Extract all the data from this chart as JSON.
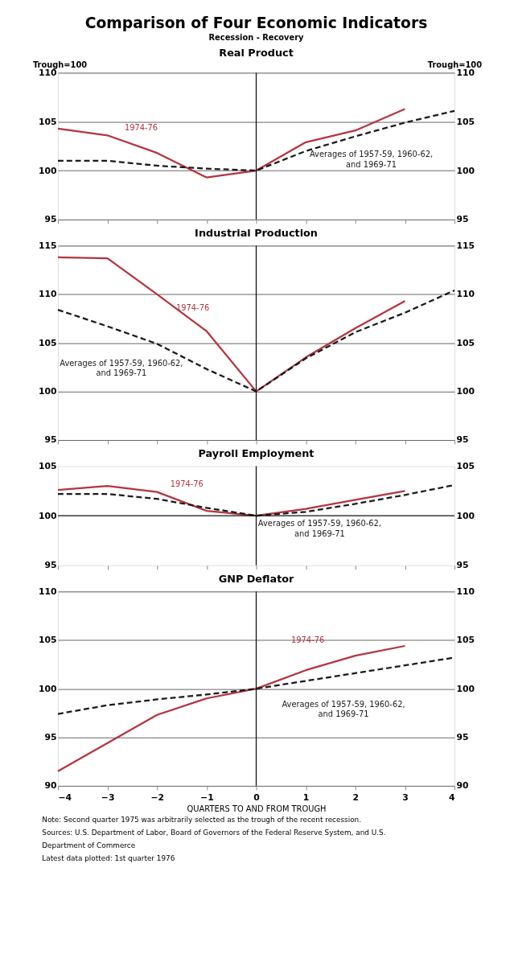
{
  "chart_data": [
    {
      "type": "other",
      "title": "Comparison of Four Economic Indicators",
      "subtitle": "Recession - Recovery"
    },
    {
      "type": "line",
      "title": "Real Product",
      "ylabel": "Trough=100",
      "y2label": "Trough=100",
      "xlim": [
        -4,
        4
      ],
      "xticks": [
        -4,
        -3,
        -2,
        -1,
        0,
        1,
        2,
        3,
        4
      ],
      "ylim": [
        95,
        110
      ],
      "yticks": [
        95,
        100,
        105,
        110
      ],
      "y2lim": [
        95,
        110
      ],
      "y2ticks": [
        95,
        100,
        105,
        110
      ],
      "tick_labels": "y",
      "grid": "y",
      "series": [
        {
          "color": "#b5343f",
          "line_style": "solid",
          "x": [
            -4,
            -3,
            -2,
            -1,
            0,
            1,
            2,
            3
          ],
          "values": [
            104.3,
            103.6,
            101.8,
            99.3,
            100,
            102.9,
            104.1,
            106.3
          ]
        },
        {
          "color": "#1a1a1a",
          "line_style": "dashed",
          "x": [
            -4,
            -3,
            -2,
            -1,
            0,
            1,
            2,
            3,
            4
          ],
          "values": [
            101.0,
            101.0,
            100.5,
            100.2,
            100,
            102.0,
            103.5,
            104.9,
            106.1
          ]
        }
      ],
      "ref_lines": [
        {
          "axis": "x",
          "value": 0
        }
      ],
      "annotations": [
        "1974-76",
        "Averages of 1957-59, 1960-62,\nand 1969-71"
      ]
    },
    {
      "type": "line",
      "title": "Industrial Production",
      "xlim": [
        -4,
        4
      ],
      "xticks": [
        -4,
        -3,
        -2,
        -1,
        0,
        1,
        2,
        3,
        4
      ],
      "ylim": [
        95,
        115
      ],
      "yticks": [
        95,
        100,
        105,
        110,
        115
      ],
      "y2lim": [
        95,
        115
      ],
      "y2ticks": [
        95,
        100,
        105,
        110,
        115
      ],
      "tick_labels": "y",
      "grid": "y",
      "series": [
        {
          "color": "#b5343f",
          "line_style": "solid",
          "x": [
            -4,
            -3,
            -2,
            -1,
            0,
            1,
            2,
            3
          ],
          "values": [
            113.8,
            113.7,
            110.0,
            106.2,
            100,
            103.5,
            106.5,
            109.3
          ]
        },
        {
          "color": "#1a1a1a",
          "line_style": "dashed",
          "x": [
            -4,
            -3,
            -2,
            -1,
            0,
            1,
            2,
            3,
            4
          ],
          "values": [
            108.4,
            106.7,
            104.9,
            102.3,
            100,
            103.4,
            106.1,
            108.1,
            110.4
          ]
        }
      ],
      "ref_lines": [
        {
          "axis": "x",
          "value": 0
        }
      ],
      "annotations": [
        "1974-76",
        "Averages of 1957-59, 1960-62,\nand 1969-71"
      ]
    },
    {
      "type": "line",
      "title": "Payroll Employment",
      "xlim": [
        -4,
        4
      ],
      "xticks": [
        -4,
        -3,
        -2,
        -1,
        0,
        1,
        2,
        3,
        4
      ],
      "ylim": [
        95,
        105
      ],
      "yticks": [
        95,
        100,
        105
      ],
      "y2lim": [
        95,
        105
      ],
      "y2ticks": [
        95,
        100,
        105
      ],
      "tick_labels": "y",
      "series": [
        {
          "color": "#b5343f",
          "line_style": "solid",
          "x": [
            -4,
            -3,
            -2,
            -1,
            0,
            1,
            2,
            3
          ],
          "values": [
            102.6,
            103.0,
            102.4,
            100.5,
            100,
            100.7,
            101.6,
            102.5
          ]
        },
        {
          "color": "#1a1a1a",
          "line_style": "dashed",
          "x": [
            -4,
            -3,
            -2,
            -1,
            0,
            1,
            2,
            3,
            4
          ],
          "values": [
            102.2,
            102.2,
            101.7,
            100.8,
            100,
            100.4,
            101.2,
            102.1,
            103.1
          ]
        }
      ],
      "ref_lines": [
        {
          "axis": "x",
          "value": 0
        },
        {
          "axis": "y",
          "value": 100
        }
      ],
      "annotations": [
        "1974-76",
        "Averages of 1957-59, 1960-62,\nand 1969-71"
      ]
    },
    {
      "type": "line",
      "title": "GNP Deflator",
      "xlabel": "QUARTERS TO AND FROM TROUGH",
      "xlim": [
        -4,
        4
      ],
      "xticks": [
        -4,
        -3,
        -2,
        -1,
        0,
        1,
        2,
        3,
        4
      ],
      "ylim": [
        90,
        110
      ],
      "yticks": [
        90,
        95,
        100,
        105,
        110
      ],
      "y2lim": [
        90,
        110
      ],
      "y2ticks": [
        90,
        95,
        100,
        105,
        110
      ],
      "grid": "y",
      "series": [
        {
          "color": "#b5343f",
          "line_style": "solid",
          "x": [
            -4,
            -3,
            -2,
            -1,
            0,
            1,
            2,
            3
          ],
          "values": [
            91.5,
            94.4,
            97.3,
            99.0,
            100,
            101.9,
            103.4,
            104.4
          ]
        },
        {
          "color": "#1a1a1a",
          "line_style": "dashed",
          "x": [
            -4,
            -3,
            -2,
            -1,
            0,
            1,
            2,
            3,
            4
          ],
          "values": [
            97.4,
            98.3,
            98.9,
            99.4,
            100,
            100.8,
            101.6,
            102.4,
            103.2
          ]
        }
      ],
      "ref_lines": [
        {
          "axis": "x",
          "value": 0
        }
      ],
      "annotations": [
        "1974-76",
        "Averages of 1957-59, 1960-62,\nand 1969-71",
        "Note: Second quarter 1975 was arbitrarily selected as the trough of the recent recession.",
        "Sources: U.S. Department of Labor, Board of Governors of the Federal Reserve System, and U.S.\n          Department of Commerce",
        "Latest data plotted: 1st quarter 1976"
      ]
    }
  ]
}
